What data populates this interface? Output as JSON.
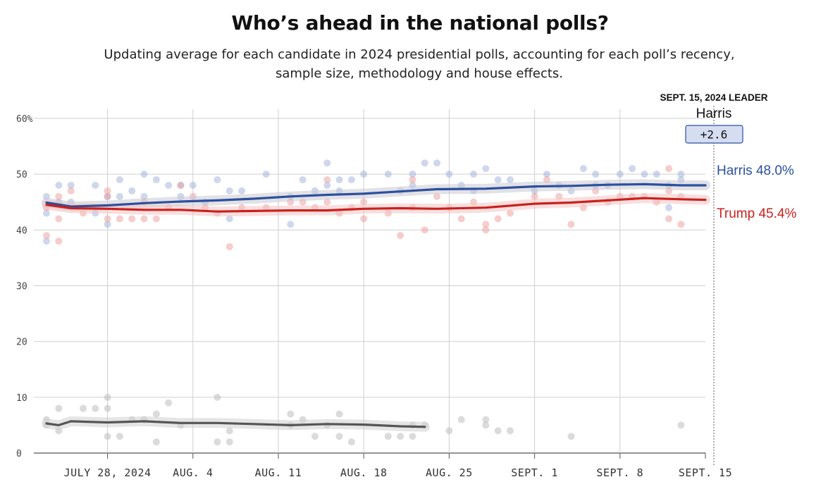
{
  "page": {
    "title": "Who’s ahead in the national polls?",
    "subtitle": "Updating average for each candidate in 2024 presidential polls, accounting for each poll’s recency, sample size, methodology and house effects."
  },
  "leader": {
    "heading": "SEPT. 15, 2024 LEADER",
    "name": "Harris",
    "margin": "+2.6"
  },
  "colors": {
    "harris": "#2c4f9e",
    "trump": "#c9211e",
    "other": "#555555",
    "grid": "#cccccc"
  },
  "chart_data": {
    "type": "line",
    "title": "Who’s ahead in the national polls?",
    "xlabel": "",
    "ylabel": "",
    "ylim": [
      0,
      60
    ],
    "yticks": [
      0,
      10,
      20,
      30,
      40,
      50,
      60
    ],
    "ytick_labels": [
      "0",
      "10",
      "20",
      "30",
      "40",
      "50",
      "60%"
    ],
    "xlim": [
      "2024-07-23",
      "2024-09-15"
    ],
    "xticks": [
      "2024-07-28",
      "2024-08-04",
      "2024-08-11",
      "2024-08-18",
      "2024-08-25",
      "2024-09-01",
      "2024-09-08",
      "2024-09-15"
    ],
    "xtick_labels": [
      "JULY 28, 2024",
      "AUG. 4",
      "AUG. 11",
      "AUG. 18",
      "AUG. 25",
      "SEPT. 1",
      "SEPT. 8",
      "SEPT. 15"
    ],
    "grid": true,
    "series": [
      {
        "name": "Harris",
        "label": "Harris 48.0%",
        "color": "#2c4f9e",
        "x": [
          "2024-07-23",
          "2024-07-25",
          "2024-07-28",
          "2024-07-31",
          "2024-08-03",
          "2024-08-06",
          "2024-08-09",
          "2024-08-12",
          "2024-08-15",
          "2024-08-18",
          "2024-08-21",
          "2024-08-24",
          "2024-08-28",
          "2024-09-01",
          "2024-09-04",
          "2024-09-07",
          "2024-09-10",
          "2024-09-13",
          "2024-09-15"
        ],
        "values": [
          44.9,
          44.2,
          44.4,
          44.8,
          45.1,
          45.3,
          45.6,
          46.0,
          46.3,
          46.5,
          46.9,
          47.3,
          47.4,
          47.8,
          47.9,
          48.1,
          48.2,
          48.0,
          48.0
        ],
        "polls": [
          [
            "2024-07-23",
            46
          ],
          [
            "2024-07-23",
            38
          ],
          [
            "2024-07-23",
            43
          ],
          [
            "2024-07-24",
            45
          ],
          [
            "2024-07-24",
            48
          ],
          [
            "2024-07-25",
            48
          ],
          [
            "2024-07-25",
            45
          ],
          [
            "2024-07-27",
            48
          ],
          [
            "2024-07-27",
            43
          ],
          [
            "2024-07-28",
            46
          ],
          [
            "2024-07-28",
            41
          ],
          [
            "2024-07-29",
            49
          ],
          [
            "2024-07-29",
            46
          ],
          [
            "2024-07-30",
            47
          ],
          [
            "2024-07-31",
            50
          ],
          [
            "2024-07-31",
            46
          ],
          [
            "2024-08-01",
            49
          ],
          [
            "2024-08-02",
            48
          ],
          [
            "2024-08-03",
            48
          ],
          [
            "2024-08-03",
            46
          ],
          [
            "2024-08-04",
            48
          ],
          [
            "2024-08-05",
            45
          ],
          [
            "2024-08-06",
            49
          ],
          [
            "2024-08-07",
            47
          ],
          [
            "2024-08-07",
            42
          ],
          [
            "2024-08-08",
            47
          ],
          [
            "2024-08-10",
            50
          ],
          [
            "2024-08-12",
            46
          ],
          [
            "2024-08-12",
            41
          ],
          [
            "2024-08-13",
            49
          ],
          [
            "2024-08-14",
            47
          ],
          [
            "2024-08-15",
            52
          ],
          [
            "2024-08-15",
            48
          ],
          [
            "2024-08-16",
            49
          ],
          [
            "2024-08-16",
            47
          ],
          [
            "2024-08-17",
            49
          ],
          [
            "2024-08-18",
            50
          ],
          [
            "2024-08-20",
            50
          ],
          [
            "2024-08-21",
            47
          ],
          [
            "2024-08-22",
            48
          ],
          [
            "2024-08-22",
            50
          ],
          [
            "2024-08-23",
            52
          ],
          [
            "2024-08-24",
            52
          ],
          [
            "2024-08-25",
            50
          ],
          [
            "2024-08-26",
            48
          ],
          [
            "2024-08-27",
            50
          ],
          [
            "2024-08-27",
            47
          ],
          [
            "2024-08-28",
            51
          ],
          [
            "2024-08-29",
            49
          ],
          [
            "2024-08-30",
            49
          ],
          [
            "2024-09-01",
            47
          ],
          [
            "2024-09-02",
            50
          ],
          [
            "2024-09-03",
            48
          ],
          [
            "2024-09-04",
            47
          ],
          [
            "2024-09-05",
            51
          ],
          [
            "2024-09-06",
            50
          ],
          [
            "2024-09-06",
            48
          ],
          [
            "2024-09-07",
            48
          ],
          [
            "2024-09-08",
            50
          ],
          [
            "2024-09-09",
            51
          ],
          [
            "2024-09-10",
            50
          ],
          [
            "2024-09-11",
            50
          ],
          [
            "2024-09-12",
            48
          ],
          [
            "2024-09-12",
            44
          ],
          [
            "2024-09-13",
            50
          ],
          [
            "2024-09-13",
            49
          ]
        ]
      },
      {
        "name": "Trump",
        "label": "Trump 45.4%",
        "color": "#c9211e",
        "x": [
          "2024-07-23",
          "2024-07-25",
          "2024-07-28",
          "2024-07-31",
          "2024-08-03",
          "2024-08-06",
          "2024-08-09",
          "2024-08-12",
          "2024-08-15",
          "2024-08-18",
          "2024-08-21",
          "2024-08-24",
          "2024-08-28",
          "2024-09-01",
          "2024-09-04",
          "2024-09-07",
          "2024-09-10",
          "2024-09-13",
          "2024-09-15"
        ],
        "values": [
          44.5,
          43.9,
          43.8,
          43.6,
          43.6,
          43.3,
          43.4,
          43.5,
          43.5,
          43.8,
          43.9,
          43.8,
          44.0,
          44.7,
          44.9,
          45.3,
          45.7,
          45.5,
          45.4
        ],
        "polls": [
          [
            "2024-07-23",
            44
          ],
          [
            "2024-07-23",
            39
          ],
          [
            "2024-07-24",
            46
          ],
          [
            "2024-07-24",
            38
          ],
          [
            "2024-07-24",
            42
          ],
          [
            "2024-07-25",
            47
          ],
          [
            "2024-07-26",
            43
          ],
          [
            "2024-07-27",
            44
          ],
          [
            "2024-07-28",
            47
          ],
          [
            "2024-07-28",
            42
          ],
          [
            "2024-07-28",
            46
          ],
          [
            "2024-07-29",
            42
          ],
          [
            "2024-07-30",
            42
          ],
          [
            "2024-07-31",
            42
          ],
          [
            "2024-07-31",
            45
          ],
          [
            "2024-08-01",
            42
          ],
          [
            "2024-08-02",
            44
          ],
          [
            "2024-08-03",
            48
          ],
          [
            "2024-08-04",
            46
          ],
          [
            "2024-08-05",
            44
          ],
          [
            "2024-08-06",
            43
          ],
          [
            "2024-08-07",
            37
          ],
          [
            "2024-08-08",
            44
          ],
          [
            "2024-08-10",
            44
          ],
          [
            "2024-08-12",
            45
          ],
          [
            "2024-08-13",
            45
          ],
          [
            "2024-08-14",
            44
          ],
          [
            "2024-08-15",
            49
          ],
          [
            "2024-08-15",
            45
          ],
          [
            "2024-08-16",
            43
          ],
          [
            "2024-08-17",
            44
          ],
          [
            "2024-08-18",
            42
          ],
          [
            "2024-08-18",
            45
          ],
          [
            "2024-08-20",
            43
          ],
          [
            "2024-08-21",
            39
          ],
          [
            "2024-08-22",
            49
          ],
          [
            "2024-08-22",
            44
          ],
          [
            "2024-08-23",
            40
          ],
          [
            "2024-08-24",
            46
          ],
          [
            "2024-08-25",
            44
          ],
          [
            "2024-08-26",
            42
          ],
          [
            "2024-08-27",
            45
          ],
          [
            "2024-08-28",
            41
          ],
          [
            "2024-08-28",
            40
          ],
          [
            "2024-08-29",
            42
          ],
          [
            "2024-08-30",
            43
          ],
          [
            "2024-09-01",
            46
          ],
          [
            "2024-09-02",
            49
          ],
          [
            "2024-09-03",
            46
          ],
          [
            "2024-09-04",
            41
          ],
          [
            "2024-09-05",
            44
          ],
          [
            "2024-09-06",
            47
          ],
          [
            "2024-09-07",
            45
          ],
          [
            "2024-09-08",
            46
          ],
          [
            "2024-09-09",
            46
          ],
          [
            "2024-09-10",
            46
          ],
          [
            "2024-09-11",
            45
          ],
          [
            "2024-09-12",
            47
          ],
          [
            "2024-09-12",
            42
          ],
          [
            "2024-09-12",
            51
          ],
          [
            "2024-09-13",
            41
          ],
          [
            "2024-09-13",
            46
          ]
        ]
      },
      {
        "name": "Other",
        "label": "",
        "color": "#555555",
        "x": [
          "2024-07-23",
          "2024-07-24",
          "2024-07-25",
          "2024-07-28",
          "2024-07-31",
          "2024-08-03",
          "2024-08-06",
          "2024-08-09",
          "2024-08-12",
          "2024-08-15",
          "2024-08-18",
          "2024-08-21",
          "2024-08-23"
        ],
        "values": [
          5.3,
          5.0,
          5.7,
          5.5,
          5.7,
          5.4,
          5.4,
          5.2,
          5.0,
          5.2,
          5.1,
          4.8,
          4.7
        ],
        "polls": [
          [
            "2024-07-23",
            6
          ],
          [
            "2024-07-23",
            5
          ],
          [
            "2024-07-24",
            4
          ],
          [
            "2024-07-24",
            8
          ],
          [
            "2024-07-26",
            8
          ],
          [
            "2024-07-27",
            8
          ],
          [
            "2024-07-28",
            10
          ],
          [
            "2024-07-28",
            8
          ],
          [
            "2024-07-28",
            3
          ],
          [
            "2024-07-29",
            3
          ],
          [
            "2024-07-30",
            6
          ],
          [
            "2024-07-31",
            6
          ],
          [
            "2024-08-01",
            2
          ],
          [
            "2024-08-01",
            7
          ],
          [
            "2024-08-02",
            9
          ],
          [
            "2024-08-03",
            5
          ],
          [
            "2024-08-06",
            2
          ],
          [
            "2024-08-06",
            10
          ],
          [
            "2024-08-07",
            4
          ],
          [
            "2024-08-07",
            2
          ],
          [
            "2024-08-12",
            7
          ],
          [
            "2024-08-12",
            5
          ],
          [
            "2024-08-13",
            6
          ],
          [
            "2024-08-14",
            3
          ],
          [
            "2024-08-15",
            5
          ],
          [
            "2024-08-16",
            7
          ],
          [
            "2024-08-16",
            3
          ],
          [
            "2024-08-17",
            2
          ],
          [
            "2024-08-20",
            3
          ],
          [
            "2024-08-21",
            3
          ],
          [
            "2024-08-22",
            3
          ],
          [
            "2024-08-22",
            5
          ],
          [
            "2024-08-23",
            5
          ],
          [
            "2024-08-25",
            4
          ],
          [
            "2024-08-26",
            6
          ],
          [
            "2024-08-28",
            6
          ],
          [
            "2024-08-28",
            5
          ],
          [
            "2024-08-29",
            4
          ],
          [
            "2024-08-30",
            4
          ],
          [
            "2024-09-04",
            3
          ],
          [
            "2024-09-13",
            5
          ]
        ]
      }
    ]
  }
}
